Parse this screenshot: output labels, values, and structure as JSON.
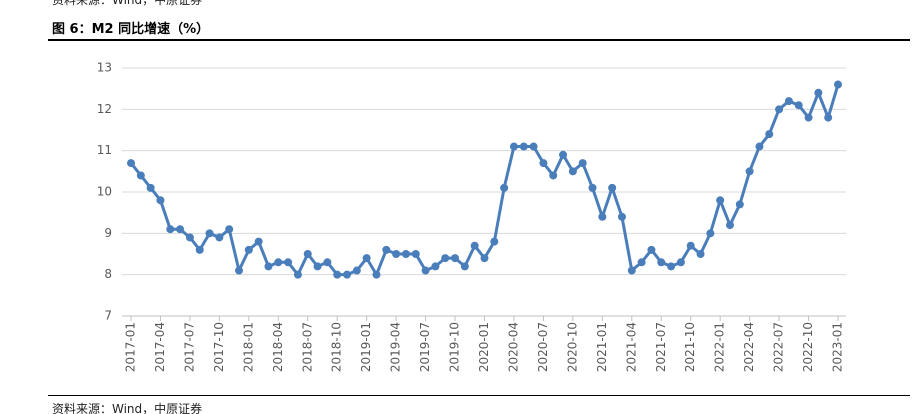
{
  "header": {
    "source": "资料来源：Wind，中原证券",
    "title": "图 6：M2 同比增速（%）"
  },
  "footer": {
    "source": "资料来源：Wind，中原证券"
  },
  "chart_data": {
    "type": "line",
    "color": "#4a7ebb",
    "categories": [
      "2017-01",
      null,
      null,
      "2017-04",
      null,
      null,
      "2017-07",
      null,
      null,
      "2017-10",
      null,
      null,
      "2018-01",
      null,
      null,
      "2018-04",
      null,
      null,
      "2018-07",
      null,
      null,
      "2018-10",
      null,
      null,
      "2019-01",
      null,
      null,
      "2019-04",
      null,
      null,
      "2019-07",
      null,
      null,
      "2019-10",
      null,
      null,
      "2020-01",
      null,
      null,
      "2020-04",
      null,
      null,
      "2020-07",
      null,
      null,
      "2020-10",
      null,
      null,
      "2021-01",
      null,
      null,
      "2021-04",
      null,
      null,
      "2021-07",
      null,
      null,
      "2021-10",
      null,
      null,
      "2022-01",
      null,
      null,
      "2022-04",
      null,
      null,
      "2022-07",
      null,
      null,
      "2022-10",
      null,
      null,
      "2023-01"
    ],
    "values": [
      10.7,
      10.4,
      10.1,
      9.8,
      9.1,
      9.1,
      8.9,
      8.6,
      9.0,
      8.9,
      9.1,
      8.1,
      8.6,
      8.8,
      8.2,
      8.3,
      8.3,
      8.0,
      8.5,
      8.2,
      8.3,
      8.0,
      8.0,
      8.1,
      8.4,
      8.0,
      8.6,
      8.5,
      8.5,
      8.5,
      8.1,
      8.2,
      8.4,
      8.4,
      8.2,
      8.7,
      8.4,
      8.8,
      10.1,
      11.1,
      11.1,
      11.1,
      10.7,
      10.4,
      10.9,
      10.5,
      10.7,
      10.1,
      9.4,
      10.1,
      9.4,
      8.1,
      8.3,
      8.6,
      8.3,
      8.2,
      8.3,
      8.7,
      8.5,
      9.0,
      9.8,
      9.2,
      9.7,
      10.5,
      11.1,
      11.4,
      12.0,
      12.2,
      12.1,
      11.8,
      12.4,
      11.8,
      12.6
    ],
    "ylim": [
      7,
      13
    ],
    "yticks": [
      7,
      8,
      9,
      10,
      11,
      12,
      13
    ],
    "grid": true
  }
}
